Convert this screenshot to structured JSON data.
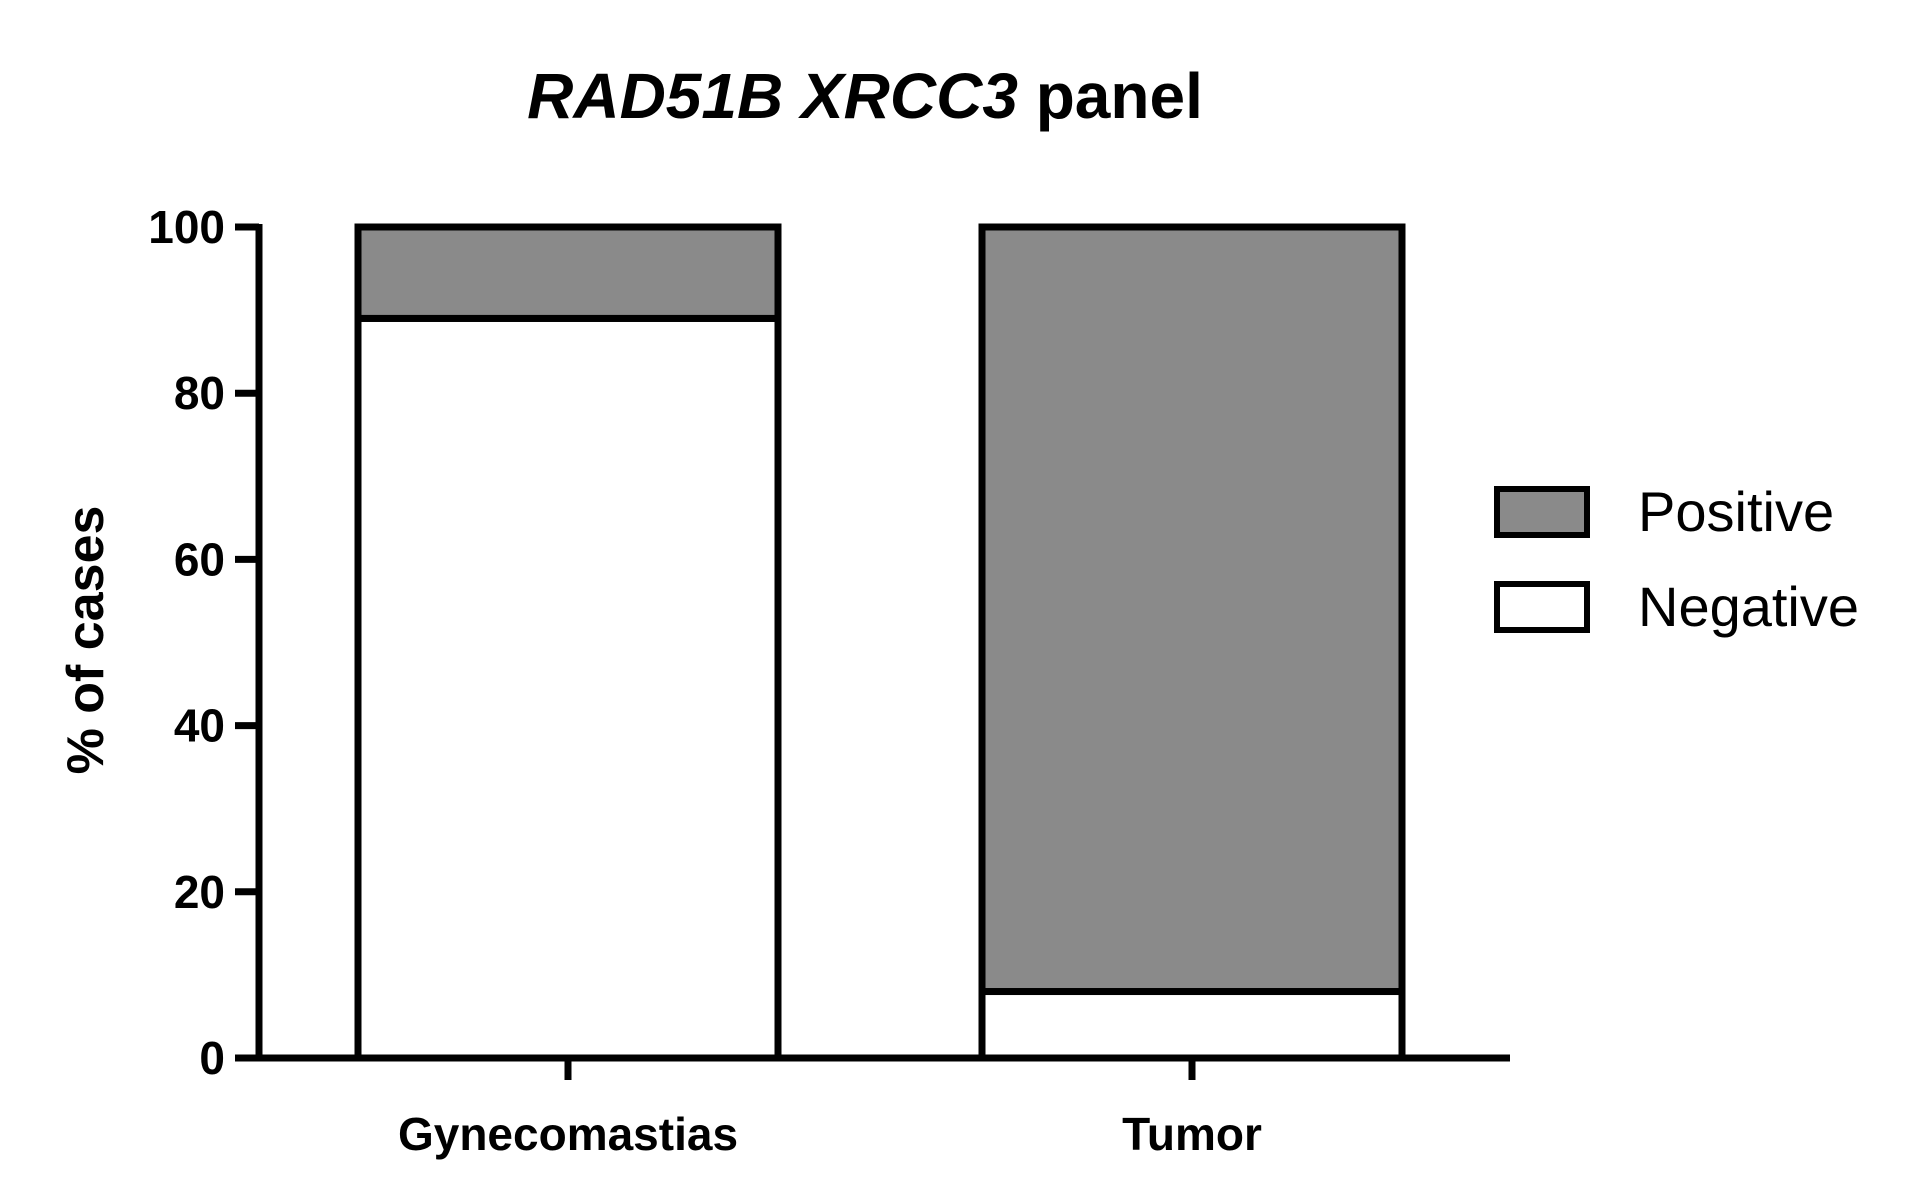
{
  "chart_data": {
    "type": "bar",
    "stacked": true,
    "title": {
      "italic_part": "RAD51B XRCC3",
      "normal_part": " panel"
    },
    "ylabel": "% of cases",
    "xlabel": "",
    "ylim": [
      0,
      100
    ],
    "yticks": [
      "0",
      "20",
      "40",
      "60",
      "80",
      "100"
    ],
    "categories": [
      "Gynecomastias",
      "Tumor"
    ],
    "series": [
      {
        "name": "Negative",
        "color": "#ffffff",
        "values": [
          89,
          8
        ]
      },
      {
        "name": "Positive",
        "color": "#8a8a8a",
        "values": [
          11,
          92
        ]
      }
    ],
    "legend_position": "right",
    "grid": false
  }
}
